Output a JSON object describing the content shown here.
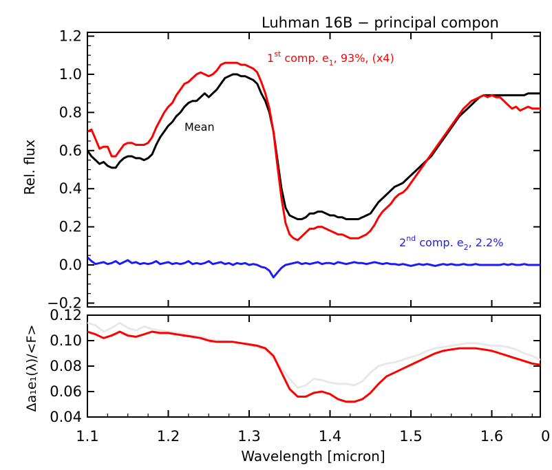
{
  "chart_data": [
    {
      "type": "line",
      "title": "Luhman 16B − principal compon",
      "xlabel": "",
      "ylabel": "Rel. flux",
      "xlim": [
        1.1,
        1.66
      ],
      "ylim": [
        -0.22,
        1.22
      ],
      "yticks": [
        -0.2,
        0.0,
        0.2,
        0.4,
        0.6,
        0.8,
        1.0,
        1.2
      ],
      "ytick_labels": [
        "−0.2",
        "0.0",
        "0.2",
        "0.4",
        "0.6",
        "0.8",
        "1.0",
        "1.2"
      ],
      "annotations": {
        "mean": "Mean",
        "comp1_pre": "1",
        "comp1_sup": "st",
        "comp1_mid": " comp. e",
        "comp1_sub": "1",
        "comp1_post": ", 93%, (x4)",
        "comp2_pre": "2",
        "comp2_sup": "nd",
        "comp2_mid": " comp. e",
        "comp2_sub": "2",
        "comp2_post": ", 2.2%"
      },
      "series": [
        {
          "color": "#000000",
          "x": [
            1.1,
            1.105,
            1.11,
            1.115,
            1.12,
            1.125,
            1.13,
            1.135,
            1.14,
            1.145,
            1.15,
            1.155,
            1.16,
            1.165,
            1.17,
            1.175,
            1.18,
            1.185,
            1.19,
            1.195,
            1.2,
            1.205,
            1.21,
            1.215,
            1.22,
            1.225,
            1.23,
            1.235,
            1.24,
            1.245,
            1.25,
            1.255,
            1.26,
            1.265,
            1.27,
            1.275,
            1.28,
            1.285,
            1.29,
            1.295,
            1.3,
            1.305,
            1.31,
            1.315,
            1.32,
            1.325,
            1.33,
            1.335,
            1.34,
            1.345,
            1.35,
            1.355,
            1.36,
            1.365,
            1.37,
            1.375,
            1.38,
            1.385,
            1.39,
            1.395,
            1.4,
            1.405,
            1.41,
            1.415,
            1.42,
            1.425,
            1.43,
            1.435,
            1.44,
            1.445,
            1.45,
            1.455,
            1.46,
            1.465,
            1.47,
            1.475,
            1.48,
            1.485,
            1.49,
            1.495,
            1.5,
            1.505,
            1.51,
            1.515,
            1.52,
            1.525,
            1.53,
            1.535,
            1.54,
            1.545,
            1.55,
            1.555,
            1.56,
            1.565,
            1.57,
            1.575,
            1.58,
            1.585,
            1.59,
            1.595,
            1.6,
            1.605,
            1.61,
            1.615,
            1.62,
            1.625,
            1.63,
            1.635,
            1.64,
            1.645,
            1.65,
            1.655,
            1.66
          ],
          "y": [
            0.6,
            0.57,
            0.55,
            0.53,
            0.54,
            0.52,
            0.51,
            0.51,
            0.54,
            0.56,
            0.57,
            0.57,
            0.56,
            0.56,
            0.55,
            0.56,
            0.58,
            0.63,
            0.67,
            0.7,
            0.73,
            0.75,
            0.78,
            0.8,
            0.83,
            0.85,
            0.86,
            0.86,
            0.88,
            0.9,
            0.88,
            0.9,
            0.92,
            0.95,
            0.98,
            0.99,
            1.0,
            1.0,
            0.99,
            0.99,
            0.98,
            0.97,
            0.95,
            0.9,
            0.86,
            0.8,
            0.7,
            0.55,
            0.4,
            0.3,
            0.26,
            0.25,
            0.24,
            0.24,
            0.25,
            0.27,
            0.27,
            0.28,
            0.28,
            0.27,
            0.26,
            0.26,
            0.25,
            0.25,
            0.24,
            0.24,
            0.24,
            0.24,
            0.25,
            0.26,
            0.27,
            0.3,
            0.33,
            0.35,
            0.37,
            0.39,
            0.41,
            0.42,
            0.43,
            0.45,
            0.47,
            0.49,
            0.51,
            0.53,
            0.55,
            0.57,
            0.6,
            0.63,
            0.66,
            0.69,
            0.72,
            0.75,
            0.78,
            0.8,
            0.82,
            0.84,
            0.86,
            0.88,
            0.89,
            0.89,
            0.89,
            0.89,
            0.89,
            0.89,
            0.89,
            0.89,
            0.89,
            0.89,
            0.89,
            0.9,
            0.9,
            0.9,
            0.9
          ]
        },
        {
          "color": "#ff0000",
          "x": [
            1.1,
            1.105,
            1.11,
            1.115,
            1.12,
            1.125,
            1.13,
            1.135,
            1.14,
            1.145,
            1.15,
            1.155,
            1.16,
            1.165,
            1.17,
            1.175,
            1.18,
            1.185,
            1.19,
            1.195,
            1.2,
            1.205,
            1.21,
            1.215,
            1.22,
            1.225,
            1.23,
            1.235,
            1.24,
            1.245,
            1.25,
            1.255,
            1.26,
            1.265,
            1.27,
            1.275,
            1.28,
            1.285,
            1.29,
            1.295,
            1.3,
            1.305,
            1.31,
            1.315,
            1.32,
            1.325,
            1.33,
            1.335,
            1.34,
            1.345,
            1.35,
            1.355,
            1.36,
            1.365,
            1.37,
            1.375,
            1.38,
            1.385,
            1.39,
            1.395,
            1.4,
            1.405,
            1.41,
            1.415,
            1.42,
            1.425,
            1.43,
            1.435,
            1.44,
            1.445,
            1.45,
            1.455,
            1.46,
            1.465,
            1.47,
            1.475,
            1.48,
            1.485,
            1.49,
            1.495,
            1.5,
            1.505,
            1.51,
            1.515,
            1.52,
            1.525,
            1.53,
            1.535,
            1.54,
            1.545,
            1.55,
            1.555,
            1.56,
            1.565,
            1.57,
            1.575,
            1.58,
            1.585,
            1.59,
            1.595,
            1.6,
            1.605,
            1.61,
            1.615,
            1.62,
            1.625,
            1.63,
            1.635,
            1.64,
            1.645,
            1.65,
            1.655,
            1.66
          ],
          "y": [
            0.7,
            0.71,
            0.66,
            0.61,
            0.62,
            0.62,
            0.57,
            0.57,
            0.6,
            0.63,
            0.64,
            0.64,
            0.63,
            0.63,
            0.63,
            0.64,
            0.67,
            0.72,
            0.76,
            0.8,
            0.83,
            0.85,
            0.89,
            0.92,
            0.95,
            0.96,
            0.98,
            1.0,
            1.01,
            1.0,
            0.99,
            1.0,
            1.02,
            1.05,
            1.06,
            1.06,
            1.06,
            1.06,
            1.05,
            1.05,
            1.04,
            1.03,
            1.01,
            0.96,
            0.9,
            0.82,
            0.7,
            0.52,
            0.35,
            0.22,
            0.16,
            0.14,
            0.13,
            0.15,
            0.17,
            0.19,
            0.19,
            0.2,
            0.2,
            0.19,
            0.18,
            0.17,
            0.16,
            0.16,
            0.15,
            0.14,
            0.14,
            0.14,
            0.15,
            0.16,
            0.18,
            0.21,
            0.25,
            0.28,
            0.3,
            0.32,
            0.35,
            0.37,
            0.38,
            0.4,
            0.43,
            0.46,
            0.49,
            0.52,
            0.55,
            0.58,
            0.61,
            0.64,
            0.67,
            0.7,
            0.73,
            0.76,
            0.79,
            0.82,
            0.84,
            0.86,
            0.87,
            0.88,
            0.89,
            0.88,
            0.89,
            0.88,
            0.88,
            0.86,
            0.84,
            0.82,
            0.83,
            0.81,
            0.82,
            0.83,
            0.82,
            0.82,
            0.82
          ]
        },
        {
          "color": "#1a1aff",
          "x": [
            1.1,
            1.105,
            1.11,
            1.115,
            1.12,
            1.125,
            1.13,
            1.135,
            1.14,
            1.145,
            1.15,
            1.155,
            1.16,
            1.165,
            1.17,
            1.175,
            1.18,
            1.185,
            1.19,
            1.195,
            1.2,
            1.205,
            1.21,
            1.215,
            1.22,
            1.225,
            1.23,
            1.235,
            1.24,
            1.245,
            1.25,
            1.255,
            1.26,
            1.265,
            1.27,
            1.275,
            1.28,
            1.285,
            1.29,
            1.295,
            1.3,
            1.305,
            1.31,
            1.315,
            1.32,
            1.325,
            1.33,
            1.335,
            1.34,
            1.345,
            1.35,
            1.355,
            1.36,
            1.365,
            1.37,
            1.375,
            1.38,
            1.385,
            1.39,
            1.395,
            1.4,
            1.405,
            1.41,
            1.415,
            1.42,
            1.425,
            1.43,
            1.435,
            1.44,
            1.445,
            1.45,
            1.455,
            1.46,
            1.465,
            1.47,
            1.475,
            1.48,
            1.485,
            1.49,
            1.495,
            1.5,
            1.505,
            1.51,
            1.515,
            1.52,
            1.525,
            1.53,
            1.535,
            1.54,
            1.545,
            1.55,
            1.555,
            1.56,
            1.565,
            1.57,
            1.575,
            1.58,
            1.585,
            1.59,
            1.595,
            1.6,
            1.605,
            1.61,
            1.615,
            1.62,
            1.625,
            1.63,
            1.635,
            1.64,
            1.645,
            1.65,
            1.655,
            1.66
          ],
          "y": [
            0.04,
            0.02,
            0.005,
            0.01,
            0.015,
            0.005,
            0.01,
            0.02,
            0.005,
            0.015,
            0.025,
            0.01,
            0.015,
            0.005,
            0.01,
            0.005,
            0.01,
            0.02,
            0.005,
            0.01,
            0.015,
            0.005,
            0.01,
            0.005,
            0.01,
            0.02,
            0.005,
            0.01,
            0.005,
            0.01,
            0.02,
            0.005,
            0.01,
            0.015,
            0.005,
            0.01,
            0.0,
            0.01,
            0.005,
            0.01,
            0.0,
            0.005,
            0.0,
            -0.01,
            -0.015,
            -0.03,
            -0.065,
            -0.04,
            -0.015,
            0.0,
            0.005,
            0.01,
            0.015,
            0.005,
            0.01,
            0.005,
            0.01,
            0.015,
            0.005,
            0.01,
            0.01,
            0.005,
            0.015,
            0.01,
            0.005,
            0.01,
            0.015,
            0.01,
            0.01,
            0.005,
            0.01,
            0.015,
            0.01,
            0.005,
            0.01,
            0.005,
            0.005,
            0.0,
            0.005,
            0.0,
            -0.005,
            0.0,
            0.005,
            0.0,
            0.005,
            0.0,
            -0.005,
            0.0,
            0.005,
            0.0,
            0.005,
            0.0,
            0.0,
            0.005,
            0.0,
            0.0,
            0.005,
            0.0,
            0.0,
            0.0,
            0.0,
            0.0,
            0.0,
            0.005,
            0.0,
            0.005,
            0.0,
            0.0,
            0.005,
            0.0,
            0.0,
            0.0,
            0.0
          ]
        }
      ]
    },
    {
      "type": "line",
      "xlabel": "Wavelength [micron]",
      "ylabel": "Δa₁e₁(λ)/<F>",
      "xlim": [
        1.1,
        1.66
      ],
      "ylim": [
        0.04,
        0.12
      ],
      "xticks": [
        1.1,
        1.2,
        1.3,
        1.4,
        1.5,
        1.6
      ],
      "xtick_labels": [
        "1.1",
        "1.2",
        "1.3",
        "1.4",
        "1.5",
        "1.6"
      ],
      "xtick_label_clipped": "0",
      "yticks": [
        0.04,
        0.06,
        0.08,
        0.1,
        0.12
      ],
      "ytick_labels": [
        "0.04",
        "0.06",
        "0.08",
        "0.10",
        "0.12"
      ],
      "series": [
        {
          "color": "#e8e8e8",
          "x": [
            1.1,
            1.11,
            1.12,
            1.13,
            1.14,
            1.15,
            1.16,
            1.17,
            1.18,
            1.19,
            1.2,
            1.21,
            1.22,
            1.23,
            1.24,
            1.25,
            1.26,
            1.27,
            1.28,
            1.29,
            1.3,
            1.31,
            1.32,
            1.33,
            1.34,
            1.35,
            1.36,
            1.37,
            1.38,
            1.39,
            1.4,
            1.41,
            1.42,
            1.43,
            1.44,
            1.45,
            1.46,
            1.47,
            1.48,
            1.49,
            1.5,
            1.51,
            1.52,
            1.53,
            1.54,
            1.55,
            1.56,
            1.57,
            1.58,
            1.59,
            1.6,
            1.61,
            1.62,
            1.63,
            1.64,
            1.65,
            1.66
          ],
          "y": [
            0.114,
            0.112,
            0.107,
            0.11,
            0.114,
            0.11,
            0.108,
            0.111,
            0.109,
            0.108,
            0.107,
            0.106,
            0.105,
            0.104,
            0.103,
            0.101,
            0.1,
            0.1,
            0.099,
            0.098,
            0.097,
            0.095,
            0.093,
            0.086,
            0.078,
            0.07,
            0.063,
            0.065,
            0.07,
            0.069,
            0.067,
            0.066,
            0.066,
            0.065,
            0.068,
            0.075,
            0.08,
            0.082,
            0.083,
            0.085,
            0.087,
            0.089,
            0.092,
            0.094,
            0.095,
            0.096,
            0.097,
            0.098,
            0.098,
            0.097,
            0.096,
            0.096,
            0.095,
            0.093,
            0.09,
            0.088,
            0.085
          ]
        },
        {
          "color": "#ff0000",
          "x": [
            1.1,
            1.11,
            1.12,
            1.13,
            1.14,
            1.15,
            1.16,
            1.17,
            1.18,
            1.19,
            1.2,
            1.21,
            1.22,
            1.23,
            1.24,
            1.25,
            1.26,
            1.27,
            1.28,
            1.29,
            1.3,
            1.31,
            1.32,
            1.33,
            1.34,
            1.35,
            1.36,
            1.37,
            1.38,
            1.39,
            1.4,
            1.41,
            1.42,
            1.43,
            1.44,
            1.45,
            1.46,
            1.47,
            1.48,
            1.49,
            1.5,
            1.51,
            1.52,
            1.53,
            1.54,
            1.55,
            1.56,
            1.57,
            1.58,
            1.59,
            1.6,
            1.61,
            1.62,
            1.63,
            1.64,
            1.65,
            1.66
          ],
          "y": [
            0.107,
            0.105,
            0.102,
            0.104,
            0.107,
            0.104,
            0.103,
            0.105,
            0.107,
            0.106,
            0.106,
            0.105,
            0.104,
            0.103,
            0.102,
            0.1,
            0.099,
            0.099,
            0.099,
            0.098,
            0.097,
            0.096,
            0.094,
            0.088,
            0.075,
            0.062,
            0.056,
            0.056,
            0.059,
            0.06,
            0.058,
            0.054,
            0.052,
            0.052,
            0.054,
            0.059,
            0.066,
            0.072,
            0.075,
            0.078,
            0.081,
            0.084,
            0.087,
            0.09,
            0.092,
            0.093,
            0.094,
            0.094,
            0.094,
            0.093,
            0.092,
            0.09,
            0.088,
            0.086,
            0.084,
            0.082,
            0.081
          ]
        }
      ]
    }
  ]
}
